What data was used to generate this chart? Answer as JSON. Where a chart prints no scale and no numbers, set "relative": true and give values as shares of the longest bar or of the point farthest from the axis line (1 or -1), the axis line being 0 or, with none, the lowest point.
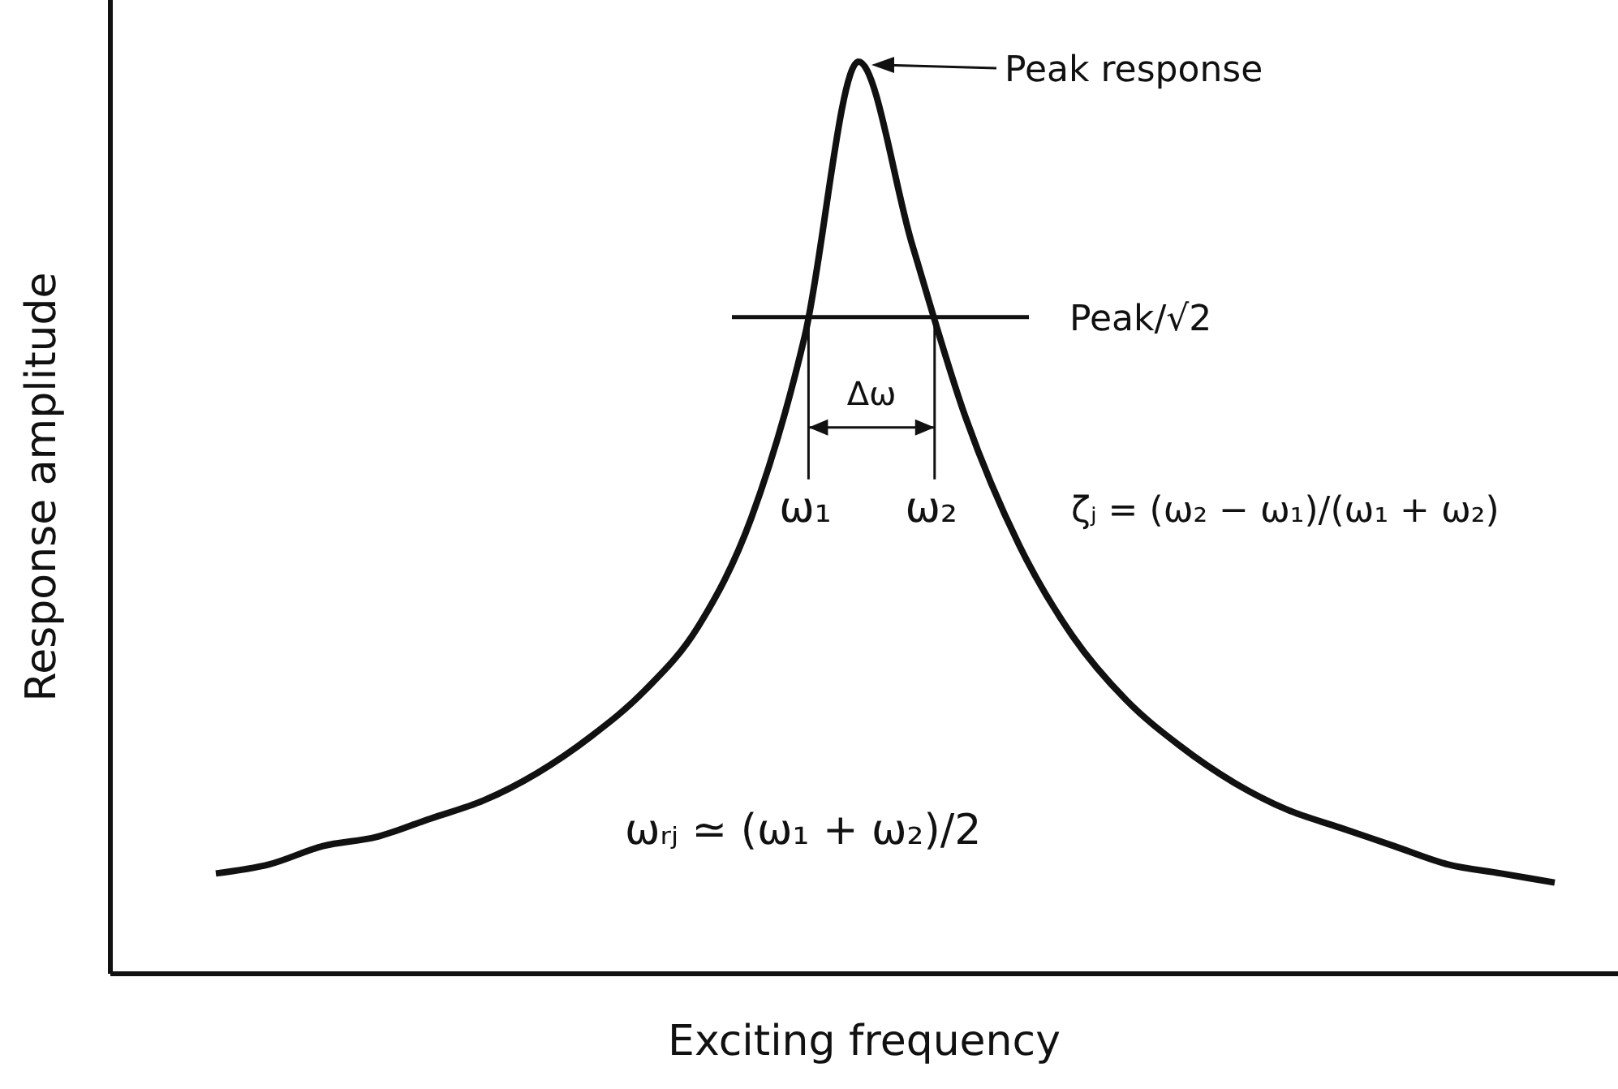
{
  "chart_data": {
    "type": "line",
    "relative": true,
    "xlabel": "Exciting frequency",
    "ylabel": "Response amplitude",
    "tick_labels": false,
    "color": "#111111",
    "marker": "none",
    "line_style": "solid",
    "categories": [
      null,
      null,
      null,
      null,
      null,
      null,
      null,
      null,
      null,
      null,
      null,
      null,
      null,
      null,
      null,
      null,
      null,
      null,
      null,
      null,
      null,
      null,
      null,
      null,
      null,
      null
    ],
    "values": [
      0.11,
      0.12,
      0.14,
      0.15,
      0.17,
      0.19,
      0.22,
      0.26,
      0.31,
      0.38,
      0.5,
      0.7,
      1,
      0.8,
      0.61,
      0.47,
      0.37,
      0.3,
      0.25,
      0.21,
      0.18,
      0.16,
      0.14,
      0.12,
      0.11,
      0.1
    ],
    "ref_lines": [
      {
        "axis": "y",
        "value": 0.72,
        "label": "Peak/√2",
        "color": "#111111"
      }
    ],
    "annotations": [
      "Peak response",
      "Δω",
      "ω₁",
      "ω₂",
      "ζⱼ = (ω₂ − ω₁)/(ω₁ + ω₂)",
      "ωᵣⱼ ≃ (ω₁ + ω₂)/2"
    ]
  }
}
